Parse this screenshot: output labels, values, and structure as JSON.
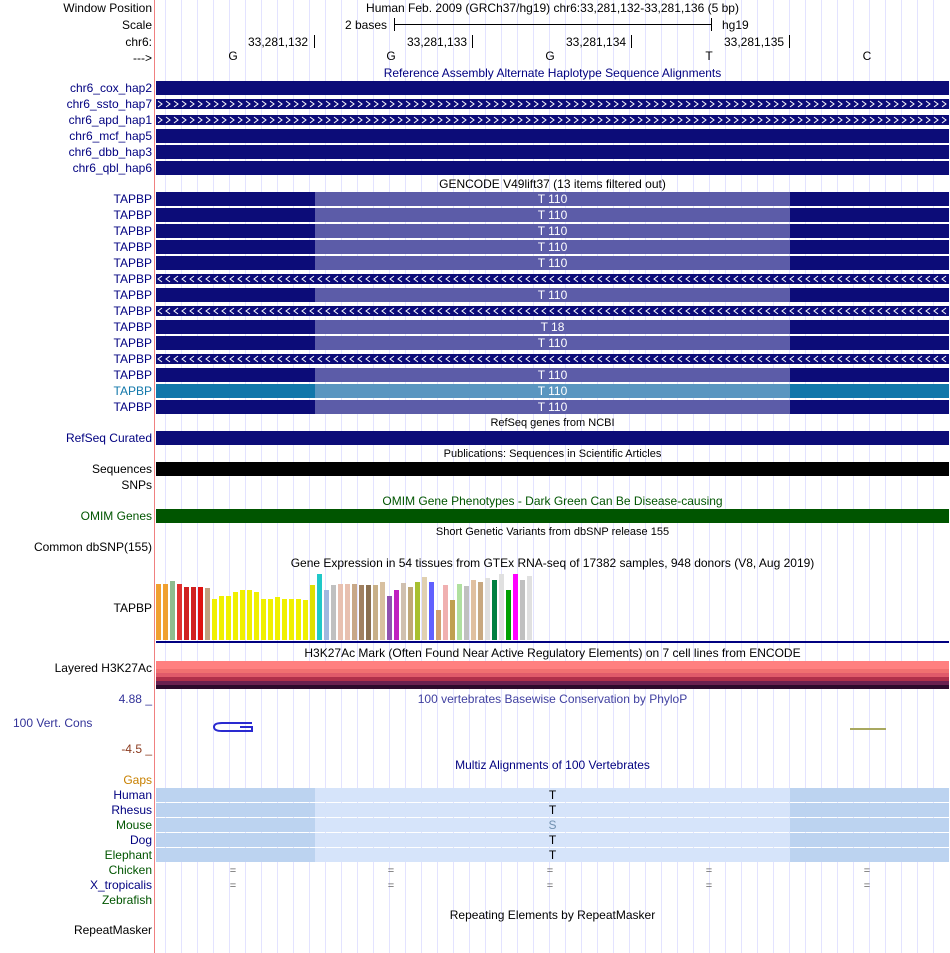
{
  "header": {
    "window_position_label": "Window Position",
    "scale_label": "Scale",
    "chrom_label": "chr6:",
    "strand_label": "--->",
    "assembly_title": "Human Feb. 2009 (GRCh37/hg19)   chr6:33,281,132-33,281,136 (5 bp)",
    "scale_text": "2 bases",
    "db_text": "hg19",
    "coords": [
      "33,281,132",
      "33,281,133",
      "33,281,134",
      "33,281,135"
    ],
    "bases": [
      "G",
      "G",
      "G",
      "T",
      "C"
    ]
  },
  "alt_haplotypes": {
    "title": "Reference Assembly Alternate Haplotype Sequence Alignments",
    "rows": [
      "chr6_cox_hap2",
      "chr6_ssto_hap7",
      "chr6_apd_hap1",
      "chr6_mcf_hap5",
      "chr6_dbb_hap3",
      "chr6_qbl_hap6"
    ]
  },
  "gencode": {
    "title": "GENCODE V49lift37 (13 items filtered out)",
    "gene": "TAPBP",
    "rows": [
      {
        "label": "TAPBP",
        "kind": "exon",
        "text": "T 110"
      },
      {
        "label": "TAPBP",
        "kind": "exon",
        "text": "T 110"
      },
      {
        "label": "TAPBP",
        "kind": "exon",
        "text": "T 110"
      },
      {
        "label": "TAPBP",
        "kind": "exon",
        "text": "T 110"
      },
      {
        "label": "TAPBP",
        "kind": "exon",
        "text": "T 110"
      },
      {
        "label": "TAPBP",
        "kind": "intron",
        "text": ""
      },
      {
        "label": "TAPBP",
        "kind": "exon",
        "text": "T 110"
      },
      {
        "label": "TAPBP",
        "kind": "intron",
        "text": ""
      },
      {
        "label": "TAPBP",
        "kind": "exon",
        "text": "T 18"
      },
      {
        "label": "TAPBP",
        "kind": "exon",
        "text": "T 110"
      },
      {
        "label": "TAPBP",
        "kind": "intron",
        "text": ""
      },
      {
        "label": "TAPBP",
        "kind": "exon",
        "text": "T 110"
      },
      {
        "label": "TAPBP",
        "kind": "exon",
        "text": "T 110"
      },
      {
        "label": "TAPBP",
        "kind": "exon",
        "text": "T 110"
      }
    ]
  },
  "refseq": {
    "title": "RefSeq genes from NCBI",
    "label": "RefSeq Curated"
  },
  "publications": {
    "title": "Publications: Sequences in Scientific Articles",
    "label": "Sequences"
  },
  "snps": {
    "label": "SNPs"
  },
  "omim": {
    "title": "OMIM Gene Phenotypes - Dark Green Can Be Disease-causing",
    "label": "OMIM Genes"
  },
  "dbsnp": {
    "title": "Short Genetic Variants from dbSNP release 155",
    "label": "Common dbSNP(155)"
  },
  "gtex": {
    "title": "Gene Expression in 54 tissues from GTEx RNA-seq of 17382 samples, 948 donors (V8, Aug 2019)",
    "label": "TAPBP"
  },
  "h3k27ac": {
    "title": "H3K27Ac Mark (Often Found Near Active Regulatory Elements) on 7 cell lines from ENCODE",
    "label": "Layered H3K27Ac"
  },
  "conservation": {
    "title": "100 vertebrates Basewise Conservation by PhyloP",
    "label": "100 Vert. Cons",
    "max": "4.88 _",
    "min": "-4.5 _"
  },
  "multiz": {
    "title": "Multiz Alignments of 100 Vertebrates",
    "gaps_label": "Gaps",
    "species": [
      {
        "name": "Human",
        "base": "T"
      },
      {
        "name": "Rhesus",
        "base": "T"
      },
      {
        "name": "Mouse",
        "base": "S"
      },
      {
        "name": "Dog",
        "base": "T"
      },
      {
        "name": "Elephant",
        "base": "T"
      }
    ],
    "other_species": [
      "Chicken",
      "X_tropicalis",
      "Zebrafish"
    ],
    "eq_char": "="
  },
  "repeatmasker": {
    "title": "Repeating Elements by RepeatMasker",
    "label": "RepeatMasker"
  },
  "colors": {
    "gene_navy": "#0c0c78",
    "utr_mid": "#5c5ca8",
    "highlight": "#1177aa",
    "omim_green": "#005500",
    "multiz_blue": "#bcd3f0"
  }
}
